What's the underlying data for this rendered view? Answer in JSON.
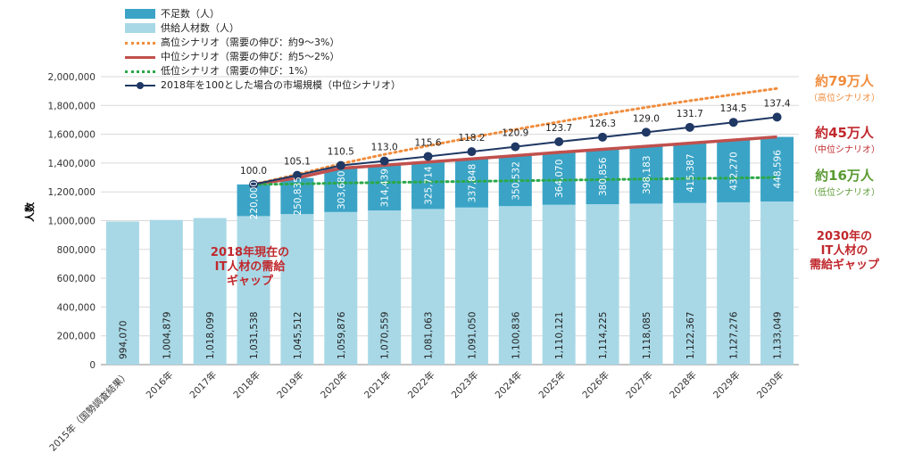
{
  "chart_data": {
    "type": "bar",
    "ylabel": "人数",
    "ylim": [
      0,
      2000000
    ],
    "yticks": [
      0,
      200000,
      400000,
      600000,
      800000,
      1000000,
      1200000,
      1400000,
      1600000,
      1800000,
      2000000
    ],
    "ytick_labels": [
      "0",
      "200,000",
      "400,000",
      "600,000",
      "800,000",
      "1,000,000",
      "1,200,000",
      "1,400,000",
      "1,600,000",
      "1,800,000",
      "2,000,000"
    ],
    "grid": true,
    "legend_position": "top-left",
    "categories": [
      "2015年（国勢調査結果）",
      "2016年",
      "2017年",
      "2018年",
      "2019年",
      "2020年",
      "2021年",
      "2022年",
      "2023年",
      "2024年",
      "2025年",
      "2026年",
      "2027年",
      "2028年",
      "2029年",
      "2030年"
    ],
    "series": [
      {
        "name": "供給人材数（人）",
        "kind": "stacked-bar",
        "color": "#a8d8e6",
        "values": [
          994070,
          1004879,
          1018099,
          1031538,
          1045512,
          1059876,
          1070559,
          1081063,
          1091050,
          1100836,
          1110121,
          1114225,
          1118085,
          1122367,
          1127276,
          1133049
        ],
        "labels": [
          "994,070",
          "1,004,879",
          "1,018,099",
          "1,031,538",
          "1,045,512",
          "1,059,876",
          "1,070,559",
          "1,081,063",
          "1,091,050",
          "1,100,836",
          "1,110,121",
          "1,114,225",
          "1,118,085",
          "1,122,367",
          "1,127,276",
          "1,133,049"
        ]
      },
      {
        "name": "不足数（人）",
        "kind": "stacked-bar",
        "color": "#3ba4c6",
        "values": [
          null,
          null,
          null,
          220000,
          250835,
          303680,
          314439,
          325714,
          337848,
          350532,
          364070,
          380856,
          398183,
          415387,
          432270,
          448596
        ],
        "labels": [
          "",
          "",
          "",
          "220,000",
          "250,835",
          "303,680",
          "314,439",
          "325,714",
          "337,848",
          "350,532",
          "364,070",
          "380,856",
          "398,183",
          "415,387",
          "432,270",
          "448,596"
        ]
      },
      {
        "name": "高位シナリオ（需要の伸び：約9～3%）",
        "kind": "line",
        "style": "dotted",
        "color": "#f08c3c",
        "values": [
          null,
          null,
          null,
          1251538,
          1321000,
          1395000,
          1460000,
          1520000,
          1578000,
          1633000,
          1686000,
          1738000,
          1787000,
          1833000,
          1876000,
          1918000
        ]
      },
      {
        "name": "中位シナリオ（需要の伸び：約5～2%）",
        "kind": "line",
        "style": "solid",
        "color": "#c0504d",
        "values": [
          null,
          null,
          null,
          1251538,
          1296347,
          1363556,
          1384998,
          1406777,
          1428898,
          1451368,
          1474191,
          1495081,
          1516268,
          1537754,
          1559546,
          1581645
        ]
      },
      {
        "name": "低位シナリオ（需要の伸び：1%）",
        "kind": "line",
        "style": "dotted",
        "color": "#2ca84a",
        "values": [
          null,
          null,
          null,
          1251538,
          1255000,
          1261000,
          1265000,
          1269000,
          1273000,
          1277000,
          1281000,
          1285000,
          1289000,
          1292000,
          1296000,
          1300000
        ]
      },
      {
        "name": "2018年を100とした場合の市場規模（中位シナリオ）",
        "kind": "line-markers",
        "color": "#1f3864",
        "values": [
          null,
          null,
          null,
          1251538,
          1315000,
          1383000,
          1414000,
          1446000,
          1479000,
          1513000,
          1548000,
          1580000,
          1614000,
          1648000,
          1683000,
          1719000
        ],
        "labels": [
          "",
          "",
          "",
          "100.0",
          "105.1",
          "110.5",
          "113.0",
          "115.6",
          "118.2",
          "120.9",
          "123.7",
          "126.3",
          "129.0",
          "131.7",
          "134.5",
          "137.4"
        ]
      }
    ],
    "annotations": {
      "high": {
        "big": "約79万人",
        "small": "（高位シナリオ）",
        "color": "#f08c3c"
      },
      "mid": {
        "big": "約45万人",
        "small": "（中位シナリオ）",
        "color": "#c0282d"
      },
      "low": {
        "big": "約16万人",
        "small": "（低位シナリオ）",
        "color": "#5a9a32"
      },
      "gap_2018": [
        "2018年現在の",
        "IT人材の需給",
        "ギャップ"
      ],
      "gap_2030": [
        "2030年の",
        "IT人材の",
        "需給ギャップ"
      ]
    }
  }
}
